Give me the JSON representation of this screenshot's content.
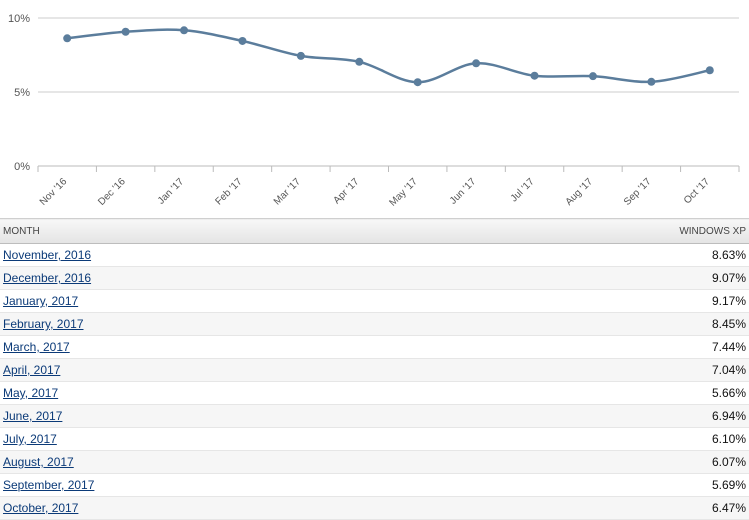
{
  "chart_data": {
    "type": "line",
    "categories": [
      "Nov '16",
      "Dec '16",
      "Jan '17",
      "Feb '17",
      "Mar '17",
      "Apr '17",
      "May '17",
      "Jun '17",
      "Jul '17",
      "Aug '17",
      "Sep '17",
      "Oct '17"
    ],
    "series": [
      {
        "values": [
          8.63,
          9.07,
          9.17,
          8.45,
          7.44,
          7.04,
          5.66,
          6.94,
          6.1,
          6.07,
          5.69,
          6.47
        ]
      }
    ],
    "yticks": [
      "0%",
      "5%",
      "10%"
    ],
    "ylim": [
      0,
      10
    ],
    "grid": true,
    "colors": {
      "line": "#5b7d9c",
      "point": "#5b7d9c",
      "grid": "#cccccc"
    }
  },
  "table": {
    "headers": {
      "month": "MONTH",
      "value": "WINDOWS XP"
    },
    "rows": [
      {
        "month": "November, 2016",
        "value": "8.63%"
      },
      {
        "month": "December, 2016",
        "value": "9.07%"
      },
      {
        "month": "January, 2017",
        "value": "9.17%"
      },
      {
        "month": "February, 2017",
        "value": "8.45%"
      },
      {
        "month": "March, 2017",
        "value": "7.44%"
      },
      {
        "month": "April, 2017",
        "value": "7.04%"
      },
      {
        "month": "May, 2017",
        "value": "5.66%"
      },
      {
        "month": "June, 2017",
        "value": "6.94%"
      },
      {
        "month": "July, 2017",
        "value": "6.10%"
      },
      {
        "month": "August, 2017",
        "value": "6.07%"
      },
      {
        "month": "September, 2017",
        "value": "5.69%"
      },
      {
        "month": "October, 2017",
        "value": "6.47%"
      }
    ]
  }
}
